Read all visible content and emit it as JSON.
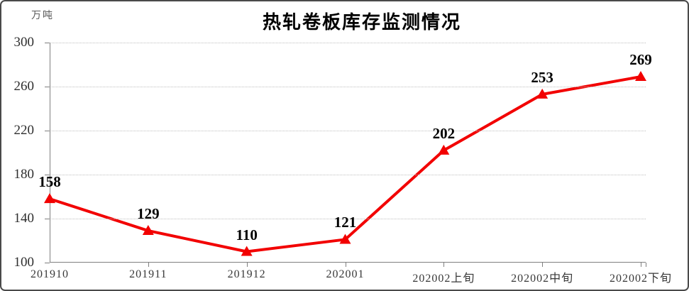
{
  "title": "热轧卷板库存监测情况",
  "unit_label": "万吨",
  "colors": {
    "line": "#f20000",
    "marker": "#f20000",
    "grid": "#bfbfbf",
    "axis": "#7f7f7f",
    "value_label": "#000000",
    "tick_label": "#383838",
    "border": "#4a4a4a",
    "background": "#ffffff"
  },
  "chart_data": {
    "type": "line",
    "title": "热轧卷板库存监测情况",
    "ylabel": "万吨",
    "xlabel": "",
    "categories": [
      "201910",
      "201911",
      "201912",
      "202001",
      "202002上旬",
      "202002中旬",
      "202002下旬"
    ],
    "values": [
      158,
      129,
      110,
      121,
      202,
      253,
      269
    ],
    "ylim": [
      100,
      300
    ],
    "yticks": [
      100,
      140,
      180,
      220,
      260,
      300
    ],
    "grid": true,
    "gridline_style": "dotted",
    "legend_position": "none",
    "marker": "triangle-up",
    "data_labels": true
  }
}
